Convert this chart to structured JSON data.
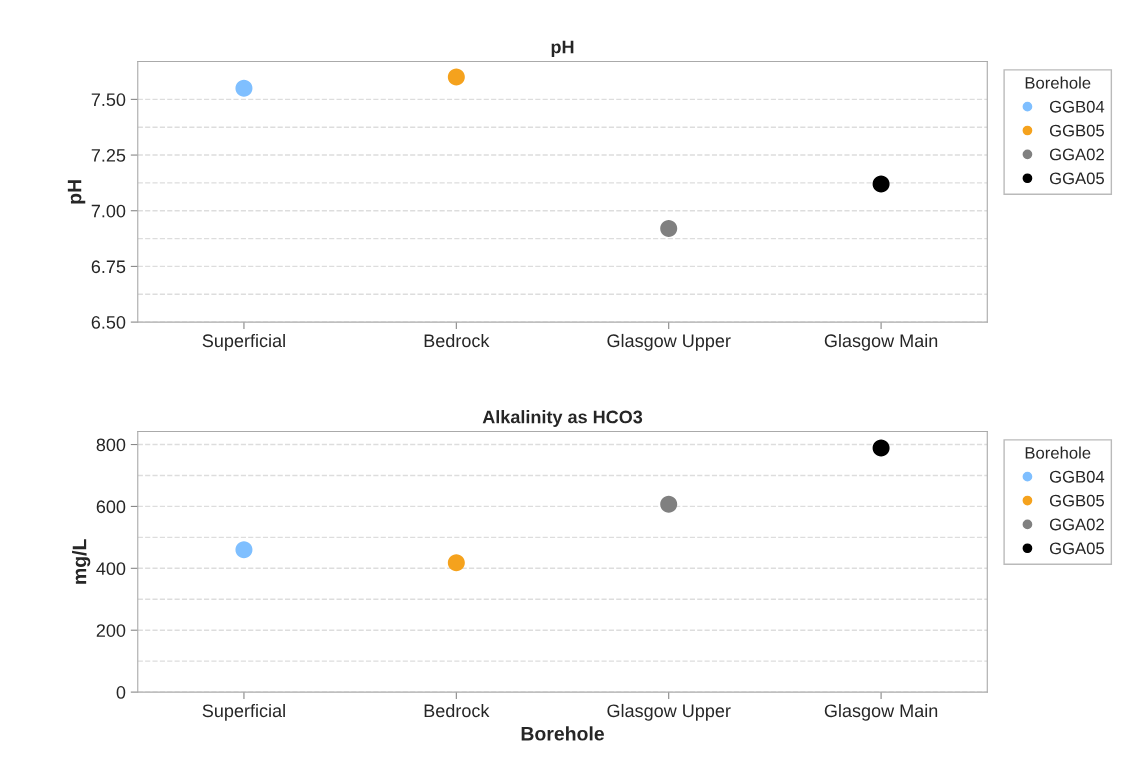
{
  "chart_data": [
    {
      "type": "scatter",
      "title": "pH",
      "ylabel": "pH",
      "legend_title": "Borehole",
      "legend": "right",
      "grid": "y",
      "marker": "circle",
      "categories": [
        "Superficial",
        "Bedrock",
        "Glasgow Upper",
        "Glasgow Main"
      ],
      "ylim": [
        6.5,
        7.67
      ],
      "yticks": [
        {
          "value": 6.5,
          "label": "6.50"
        },
        6.75,
        {
          "value": 7.0,
          "label": "7.00"
        },
        7.25,
        {
          "value": 7.5,
          "label": "7.50"
        }
      ],
      "series": [
        {
          "name": "GGB04",
          "color": "#7fbfff",
          "values": [
            7.55,
            null,
            null,
            null
          ]
        },
        {
          "name": "GGB05",
          "color": "#f5a21d",
          "values": [
            null,
            7.6,
            null,
            null
          ]
        },
        {
          "name": "GGA02",
          "color": "#808080",
          "values": [
            null,
            null,
            6.92,
            null
          ]
        },
        {
          "name": "GGA05",
          "color": "#000000",
          "values": [
            null,
            null,
            null,
            7.12
          ]
        }
      ]
    },
    {
      "type": "scatter",
      "title": "Alkalinity as HCO3",
      "xlabel": "Borehole",
      "ylabel": "mg/L",
      "legend_title": "Borehole",
      "legend": "right",
      "grid": "y",
      "marker": "circle",
      "categories": [
        "Superficial",
        "Bedrock",
        "Glasgow Upper",
        "Glasgow Main"
      ],
      "ylim": [
        0,
        842
      ],
      "yticks": [
        0,
        200,
        400,
        600,
        800
      ],
      "series": [
        {
          "name": "GGB04",
          "color": "#7fbfff",
          "values": [
            460,
            null,
            null,
            null
          ]
        },
        {
          "name": "GGB05",
          "color": "#f5a21d",
          "values": [
            null,
            418,
            null,
            null
          ]
        },
        {
          "name": "GGA02",
          "color": "#808080",
          "values": [
            null,
            null,
            607,
            null
          ]
        },
        {
          "name": "GGA05",
          "color": "#000000",
          "values": [
            null,
            null,
            null,
            789
          ]
        }
      ]
    }
  ]
}
